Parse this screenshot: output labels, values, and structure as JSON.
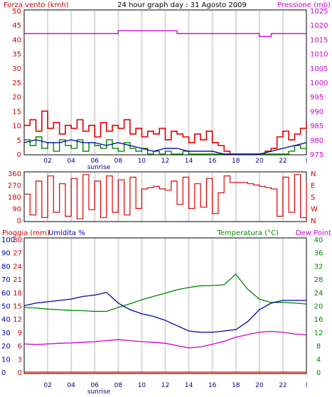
{
  "header": {
    "left_label": "Forza vento (kmh)",
    "title": "24 hour graph day : 31 Agosto 2009",
    "right_label": "Pressione (mb)"
  },
  "bottom_header": {
    "left_label_1": "Pioggia (mm)",
    "left_label_2": "Umidita %",
    "right_label_1": "Temperatura (°C)",
    "right_label_2": "Dew Point"
  },
  "x_axis": {
    "ticks": [
      "02",
      "04",
      "06",
      "08",
      "10",
      "12",
      "14",
      "16",
      "18",
      "20",
      "22",
      "l"
    ],
    "sunrise_label": "sunrise"
  },
  "colors": {
    "wind": "#dd0000",
    "gust": "#dd0000",
    "wind_avg": "#008800",
    "direction": "#dd0000",
    "pressure": "#cc00cc",
    "humidity": "#0000aa",
    "temperature": "#008800",
    "dew_point": "#cc00cc",
    "rain": "#dd0000",
    "grid": "#d8d8d8",
    "frame": "#000000"
  },
  "chart_data": [
    {
      "type": "line",
      "panel": "wind_pressure",
      "x_label_ticks": [
        "02",
        "04",
        "06",
        "08",
        "10",
        "12",
        "14",
        "16",
        "18",
        "20",
        "22",
        "l"
      ],
      "y_left": {
        "label": "Forza vento (kmh)",
        "ticks": [
          0,
          5,
          10,
          15,
          20,
          25,
          30,
          35,
          40,
          45,
          50
        ],
        "ylim": [
          0,
          50
        ]
      },
      "y_right": {
        "label": "Pressione (mb)",
        "ticks": [
          975,
          980,
          985,
          990,
          995,
          1000,
          1005,
          1010,
          1015,
          1020,
          1025
        ],
        "ylim": [
          975,
          1025
        ]
      },
      "series": [
        {
          "axis": "left",
          "x": [
            0,
            0.5,
            1,
            1.5,
            2,
            2.5,
            3,
            3.5,
            4,
            4.5,
            5,
            5.5,
            6,
            6.5,
            7,
            7.5,
            8,
            8.5,
            9,
            9.5,
            10,
            10.5,
            11,
            11.5,
            12,
            12.5,
            13,
            13.5,
            14,
            14.5,
            15,
            15.5,
            16,
            16.5,
            17,
            17.5,
            18,
            18.5,
            19,
            19.5,
            20,
            20.5,
            21,
            21.5,
            22,
            22.5,
            23,
            23.5,
            24
          ],
          "values": [
            10,
            12,
            8,
            15,
            9,
            11,
            7,
            10,
            9,
            12,
            8,
            10,
            6,
            11,
            8,
            10,
            9,
            12,
            7,
            9,
            6,
            8,
            7,
            9,
            5,
            8,
            7,
            6,
            4,
            7,
            5,
            8,
            4,
            3,
            1,
            0,
            0,
            0,
            0,
            0,
            0,
            1,
            2,
            6,
            8,
            5,
            7,
            9,
            11
          ]
        },
        {
          "axis": "left",
          "x": [
            0,
            1,
            2,
            3,
            4,
            5,
            6,
            7,
            8,
            9,
            10,
            11,
            12,
            13,
            14,
            15,
            16,
            17,
            18,
            19,
            20,
            21,
            22,
            23,
            24
          ],
          "values": [
            4,
            5,
            4,
            4,
            5,
            4,
            4,
            3,
            4,
            3,
            2,
            1,
            2,
            2,
            1,
            1,
            1,
            0,
            0,
            0,
            0,
            1,
            2,
            3,
            4
          ]
        },
        {
          "axis": "left",
          "x": [
            0,
            0.5,
            1,
            1.5,
            2,
            2.5,
            3,
            3.5,
            4,
            4.5,
            5,
            5.5,
            6,
            6.5,
            7,
            7.5,
            8,
            8.5,
            9,
            9.5,
            10,
            10.5,
            11,
            11.5,
            12,
            12.5,
            13,
            13.5,
            14,
            14.5,
            15,
            15.5,
            16,
            16.5,
            17,
            17.5,
            18,
            18.5,
            19,
            19.5,
            20,
            20.5,
            21,
            21.5,
            22,
            22.5,
            23,
            23.5,
            24
          ],
          "values": [
            5,
            3,
            6,
            2,
            4,
            1,
            5,
            3,
            2,
            5,
            1,
            4,
            3,
            2,
            5,
            2,
            1,
            4,
            2,
            1,
            2,
            0,
            1,
            0,
            1,
            0,
            0,
            1,
            0,
            0,
            0,
            0,
            0,
            0,
            0,
            0,
            0,
            0,
            0,
            0,
            0,
            0,
            0,
            0,
            0,
            1,
            3,
            2,
            4
          ]
        },
        {
          "axis": "right",
          "x": [
            0,
            1,
            2,
            3,
            4,
            5,
            6,
            7,
            8,
            9,
            10,
            11,
            12,
            13,
            14,
            15,
            16,
            17,
            18,
            19,
            20,
            21,
            22,
            23,
            24
          ],
          "values": [
            1017,
            1017,
            1017,
            1017,
            1017,
            1017,
            1017,
            1017,
            1018,
            1018,
            1018,
            1018,
            1018,
            1017,
            1017,
            1017,
            1017,
            1017,
            1017,
            1017,
            1016,
            1017,
            1017,
            1017,
            1017
          ]
        }
      ]
    },
    {
      "type": "line",
      "panel": "wind_direction",
      "y_left": {
        "ticks": [
          0,
          90,
          180,
          270,
          360
        ],
        "ylim": [
          0,
          360
        ]
      },
      "y_right": {
        "ticks": [
          "N",
          "W",
          "S",
          "E",
          "N"
        ]
      },
      "series": [
        {
          "x": [
            0,
            0.5,
            1,
            1.5,
            2,
            2.5,
            3,
            3.5,
            4,
            4.5,
            5,
            5.5,
            6,
            6.5,
            7,
            7.5,
            8,
            8.5,
            9,
            9.5,
            10,
            10.5,
            11,
            11.5,
            12,
            12.5,
            13,
            13.5,
            14,
            14.5,
            15,
            15.5,
            16,
            16.5,
            17,
            17.5,
            18,
            18.5,
            19,
            19.5,
            20,
            20.5,
            21,
            21.5,
            22,
            22.5,
            23,
            23.5,
            24
          ],
          "values": [
            200,
            40,
            300,
            20,
            340,
            60,
            280,
            30,
            320,
            10,
            350,
            80,
            300,
            20,
            340,
            60,
            310,
            40,
            330,
            90,
            240,
            250,
            260,
            240,
            230,
            300,
            120,
            330,
            90,
            280,
            100,
            320,
            50,
            210,
            340,
            290,
            290,
            290,
            280,
            270,
            260,
            250,
            240,
            30,
            330,
            60,
            350,
            20,
            300
          ]
        }
      ]
    },
    {
      "type": "line",
      "panel": "temp_humidity",
      "y_left_rain": {
        "label": "Pioggia (mm)",
        "ticks": [
          0,
          3,
          6,
          9,
          12,
          15,
          18,
          21,
          24,
          27,
          30
        ],
        "ylim": [
          0,
          30
        ]
      },
      "y_left_humidity": {
        "label": "Umidita %",
        "ticks": [
          0,
          10,
          20,
          30,
          40,
          50,
          60,
          70,
          80,
          90,
          100
        ],
        "ylim": [
          0,
          100
        ]
      },
      "y_right": {
        "label": "Temperatura (°C)",
        "ticks": [
          0,
          4,
          8,
          12,
          16,
          20,
          24,
          28,
          32,
          36,
          40
        ],
        "ylim": [
          0,
          40
        ]
      },
      "series": [
        {
          "name": "Umidita %",
          "x": [
            0,
            1,
            2,
            3,
            4,
            5,
            6,
            7,
            8,
            9,
            10,
            11,
            12,
            13,
            14,
            15,
            16,
            17,
            18,
            19,
            20,
            21,
            22,
            23,
            24
          ],
          "values": [
            50,
            52,
            53,
            54,
            55,
            57,
            58,
            60,
            52,
            47,
            44,
            42,
            39,
            35,
            31,
            30,
            30,
            31,
            32,
            38,
            47,
            52,
            54,
            54,
            54
          ]
        },
        {
          "name": "Temperatura (°C)",
          "x": [
            0,
            1,
            2,
            3,
            4,
            5,
            6,
            7,
            8,
            9,
            10,
            11,
            12,
            13,
            14,
            15,
            16,
            17,
            18,
            19,
            20,
            21,
            22,
            23,
            24
          ],
          "values": [
            19.5,
            19.3,
            19,
            18.8,
            18.6,
            18.5,
            18.3,
            18.3,
            19.5,
            20.6,
            21.8,
            22.8,
            23.8,
            24.8,
            25.5,
            26,
            26.1,
            26.3,
            29.5,
            25,
            22,
            21,
            21,
            20.8,
            20.5
          ]
        },
        {
          "name": "Dew Point",
          "x": [
            0,
            1,
            2,
            3,
            4,
            5,
            6,
            7,
            8,
            9,
            10,
            11,
            12,
            13,
            14,
            15,
            16,
            17,
            18,
            19,
            20,
            21,
            22,
            23,
            24
          ],
          "values": [
            8.5,
            8.3,
            8.5,
            8.7,
            8.8,
            9,
            9.2,
            9.5,
            9.8,
            9.5,
            9.2,
            9,
            8.7,
            8,
            7.3,
            7.6,
            8.4,
            9.3,
            10.5,
            11.3,
            12,
            12.3,
            12,
            11.5,
            11.2
          ]
        },
        {
          "name": "Pioggia (mm)",
          "x": [
            0,
            24
          ],
          "values": [
            0,
            0
          ]
        }
      ]
    }
  ]
}
